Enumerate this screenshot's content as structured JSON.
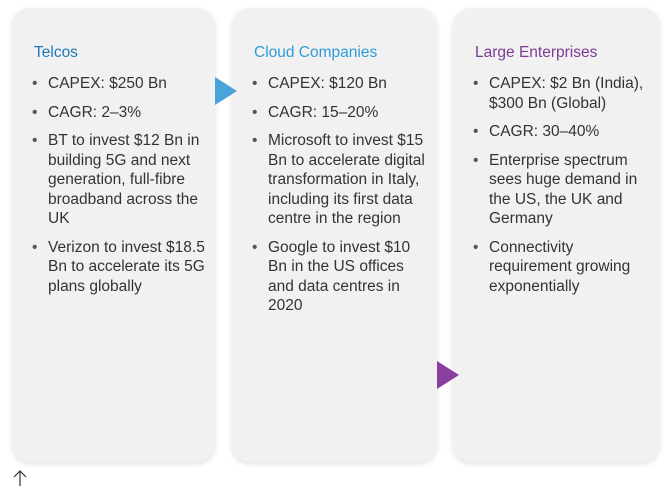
{
  "panels": [
    {
      "title": "Telcos",
      "items": [
        "CAPEX: $250 Bn",
        "CAGR: 2–3%",
        "BT to invest $12 Bn in building 5G and next generation, full-fibre broadband across the UK",
        "Verizon to invest $18.5 Bn to accelerate its 5G plans globally"
      ]
    },
    {
      "title": "Cloud Companies",
      "items": [
        "CAPEX: $120 Bn",
        "CAGR: 15–20%",
        "Microsoft to invest $15 Bn to accelerate digital transformation in Italy, including its first data centre in the region",
        "Google to invest $10 Bn in the US offices and data centres in 2020"
      ]
    },
    {
      "title": "Large Enterprises",
      "items": [
        "CAPEX: $2 Bn (India), $300 Bn (Global)",
        "CAGR: 30–40%",
        "Enterprise spectrum sees huge demand in the US, the UK and Germany",
        "Connectivity requirement growing exponentially"
      ]
    }
  ]
}
